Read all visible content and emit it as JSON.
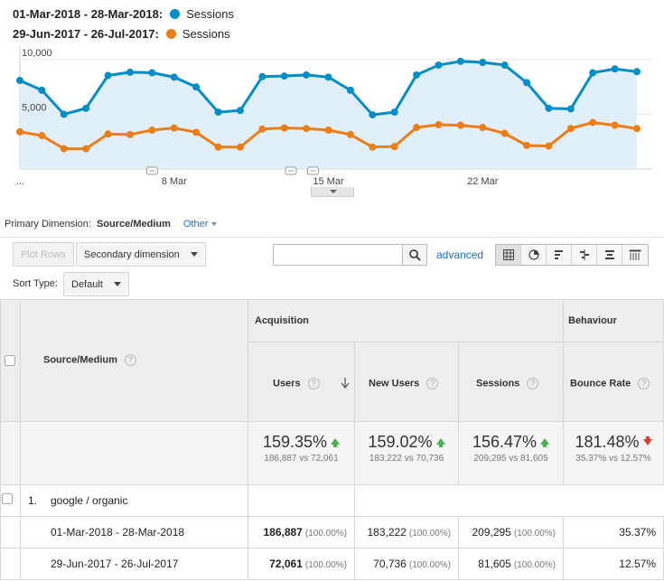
{
  "legend": [
    {
      "range": "01-Mar-2018 - 28-Mar-2018:",
      "metric": "Sessions",
      "color": "#058dc7"
    },
    {
      "range": "29-Jun-2017 - 26-Jul-2017:",
      "metric": "Sessions",
      "color": "#ed7e17"
    }
  ],
  "chart_data": {
    "type": "line",
    "x_tick_labels": [
      "...",
      "8 Mar",
      "15 Mar",
      "22 Mar"
    ],
    "y_tick_labels": [
      "10,000",
      "5,000"
    ],
    "ylim": [
      0,
      12000
    ],
    "series": [
      {
        "name": "Sessions",
        "color": "#058dc7",
        "values": [
          8100,
          7200,
          5000,
          5550,
          8550,
          8850,
          8800,
          8400,
          7500,
          5200,
          5350,
          8450,
          8500,
          8600,
          8400,
          7200,
          4950,
          5200,
          8600,
          9500,
          9850,
          9750,
          9500,
          7900,
          5550,
          5500,
          8800,
          9150,
          8900
        ]
      },
      {
        "name": "Sessions",
        "color": "#ed7e17",
        "values": [
          3400,
          3050,
          1850,
          1850,
          3200,
          3150,
          3550,
          3750,
          3350,
          2000,
          2000,
          3650,
          3750,
          3700,
          3550,
          3150,
          2000,
          2050,
          3800,
          4050,
          4000,
          3800,
          3250,
          2150,
          2100,
          3700,
          4250,
          4000,
          3700
        ]
      }
    ]
  },
  "primary_dimension": {
    "label": "Primary Dimension:",
    "value": "Source/Medium",
    "other": "Other"
  },
  "controls": {
    "plot_rows": "Plot Rows",
    "secondary_dimension": "Secondary dimension",
    "advanced": "advanced",
    "sort_type_label": "Sort Type:",
    "sort_type_value": "Default"
  },
  "table": {
    "source_medium_header": "Source/Medium",
    "acquisition": "Acquisition",
    "behaviour": "Behaviour",
    "help": "?",
    "columns": [
      "Users",
      "New Users",
      "Sessions",
      "Bounce Rate"
    ],
    "totals": [
      {
        "pct": "159.35%",
        "vs": "186,887 vs 72,061",
        "dir": "up"
      },
      {
        "pct": "159.02%",
        "vs": "183,222 vs 70,736",
        "dir": "up"
      },
      {
        "pct": "156.47%",
        "vs": "209,295 vs 81,605",
        "dir": "up"
      },
      {
        "pct": "181.48%",
        "vs": "35.37% vs 12.57%",
        "dir": "down"
      }
    ],
    "row1": {
      "index": "1.",
      "label": "google / organic"
    },
    "sub_rows": [
      {
        "range": "01-Mar-2018 - 28-Mar-2018",
        "users": "186,887",
        "users_pct": "(100.00%)",
        "new_users": "183,222",
        "new_users_pct": "(100.00%)",
        "sessions": "209,295",
        "sessions_pct": "(100.00%)",
        "bounce": "35.37%"
      },
      {
        "range": "29-Jun-2017 - 26-Jul-2017",
        "users": "72,061",
        "users_pct": "(100.00%)",
        "new_users": "70,736",
        "new_users_pct": "(100.00%)",
        "sessions": "81,605",
        "sessions_pct": "(100.00%)",
        "bounce": "12.57%"
      }
    ]
  }
}
